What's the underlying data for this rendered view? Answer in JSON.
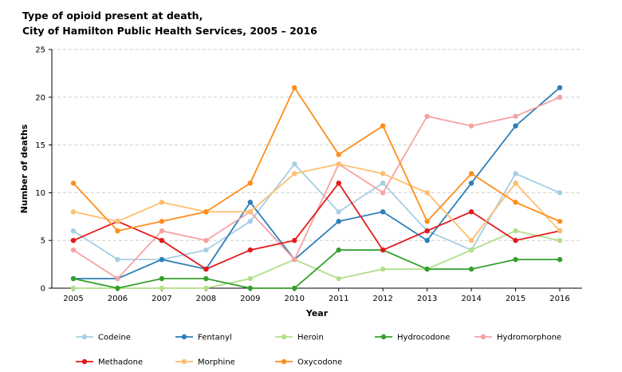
{
  "title_lines": [
    "Type of opioid present at death,",
    "City of Hamilton Public Health Services, 2005 – 2016"
  ],
  "chart_data": {
    "type": "line",
    "title": "Type of opioid present at death, City of Hamilton Public Health Services, 2005 – 2016",
    "xlabel": "Year",
    "ylabel": "Number of deaths",
    "x": [
      "2005",
      "2006",
      "2007",
      "2008",
      "2009",
      "2010",
      "2011",
      "2012",
      "2013",
      "2014",
      "2015",
      "2016"
    ],
    "ylim": [
      0,
      25
    ],
    "yticks": [
      "0",
      "5",
      "10",
      "15",
      "20",
      "25"
    ],
    "grid": "horizontal dashed",
    "legend": "bottom",
    "series": [
      {
        "name": "Codeine",
        "color": "#a6cee3",
        "values": [
          6,
          3,
          3,
          4,
          7,
          13,
          8,
          11,
          6,
          4,
          12,
          10
        ]
      },
      {
        "name": "Fentanyl",
        "color": "#2c7fb8",
        "values": [
          1,
          1,
          3,
          2,
          9,
          3,
          7,
          8,
          5,
          11,
          17,
          21
        ]
      },
      {
        "name": "Heroin",
        "color": "#b2df8a",
        "values": [
          0,
          0,
          0,
          0,
          1,
          3,
          1,
          2,
          2,
          4,
          6,
          5
        ]
      },
      {
        "name": "Hydrocodone",
        "color": "#33a02c",
        "values": [
          1,
          0,
          1,
          1,
          0,
          0,
          4,
          4,
          2,
          2,
          3,
          3
        ]
      },
      {
        "name": "Hydromorphone",
        "color": "#f4a3a3",
        "values": [
          4,
          1,
          6,
          5,
          8,
          3,
          13,
          10,
          18,
          17,
          18,
          20
        ]
      },
      {
        "name": "Methadone",
        "color": "#e31a1c",
        "values": [
          5,
          7,
          5,
          2,
          4,
          5,
          11,
          4,
          6,
          8,
          5,
          6
        ]
      },
      {
        "name": "Morphine",
        "color": "#fdbf6f",
        "values": [
          8,
          7,
          9,
          8,
          8,
          12,
          13,
          12,
          10,
          5,
          11,
          6
        ]
      },
      {
        "name": "Oxycodone",
        "color": "#ff8c1a",
        "values": [
          11,
          6,
          7,
          8,
          11,
          21,
          14,
          17,
          7,
          12,
          9,
          7
        ]
      }
    ]
  }
}
